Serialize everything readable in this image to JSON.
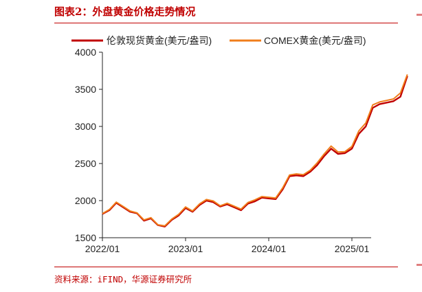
{
  "figure": {
    "title": "图表2：外盘黄金价格走势情况",
    "source": "资料来源：iFIND，华源证券研究所"
  },
  "colors": {
    "accent": "#c00000",
    "series1": "#c00000",
    "series2": "#f07d1a"
  },
  "chart_data": {
    "type": "line",
    "title": "",
    "xlabel": "",
    "ylabel": "",
    "ylim": [
      1500,
      4000
    ],
    "yticks": [
      1500,
      2000,
      2500,
      3000,
      3500,
      4000
    ],
    "xticks": [
      "2022/01",
      "2023/01",
      "2024/01",
      "2025/01"
    ],
    "grid": false,
    "legend_position": "top",
    "x": [
      "2022-01",
      "2022-02",
      "2022-03",
      "2022-04",
      "2022-05",
      "2022-06",
      "2022-07",
      "2022-08",
      "2022-09",
      "2022-10",
      "2022-11",
      "2022-12",
      "2023-01",
      "2023-02",
      "2023-03",
      "2023-04",
      "2023-05",
      "2023-06",
      "2023-07",
      "2023-08",
      "2023-09",
      "2023-10",
      "2023-11",
      "2023-12",
      "2024-01",
      "2024-02",
      "2024-03",
      "2024-04",
      "2024-05",
      "2024-06",
      "2024-07",
      "2024-08",
      "2024-09",
      "2024-10",
      "2024-11",
      "2024-12",
      "2025-01",
      "2025-02",
      "2025-03",
      "2025-04",
      "2025-05",
      "2025-06",
      "2025-07",
      "2025-08",
      "2025-09"
    ],
    "series": [
      {
        "name": "伦敦现货黄金(美元/盎司)",
        "values": [
          1820,
          1870,
          1970,
          1910,
          1850,
          1830,
          1730,
          1760,
          1670,
          1650,
          1740,
          1800,
          1900,
          1850,
          1940,
          2000,
          1980,
          1920,
          1950,
          1910,
          1870,
          1960,
          1990,
          2040,
          2030,
          2020,
          2150,
          2330,
          2340,
          2330,
          2390,
          2480,
          2600,
          2700,
          2630,
          2640,
          2700,
          2900,
          3000,
          3250,
          3300,
          3320,
          3340,
          3400,
          3680
        ]
      },
      {
        "name": "COMEX黄金(美元/盎司)",
        "values": [
          1825,
          1880,
          1980,
          1920,
          1860,
          1835,
          1740,
          1770,
          1675,
          1660,
          1750,
          1815,
          1915,
          1860,
          1955,
          2015,
          1995,
          1930,
          1965,
          1925,
          1885,
          1975,
          2010,
          2055,
          2045,
          2035,
          2170,
          2345,
          2360,
          2350,
          2410,
          2510,
          2630,
          2735,
          2655,
          2660,
          2730,
          2940,
          3045,
          3290,
          3330,
          3350,
          3370,
          3450,
          3700
        ]
      }
    ]
  }
}
